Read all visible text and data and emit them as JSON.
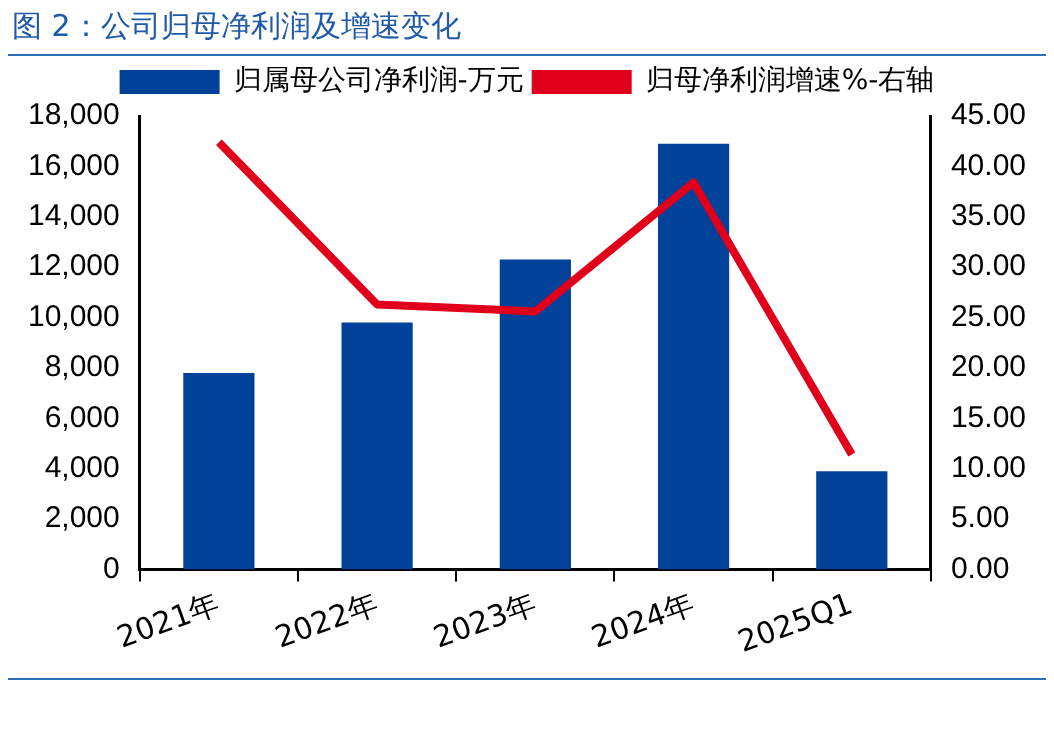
{
  "chart_data": {
    "type": "bar",
    "title": "图 2：公司归母净利润及增速变化",
    "categories": [
      "2021年",
      "2022年",
      "2023年",
      "2024年",
      "2025Q1"
    ],
    "series": [
      {
        "name": "归属母公司净利润-万元",
        "color": "#00429a",
        "values": [
          7800,
          9800,
          12300,
          16900,
          3900
        ]
      },
      {
        "name": "归母净利润增速%-右轴",
        "type": "line",
        "axis": "y2",
        "color": "#e0001b",
        "values": [
          42.4,
          26.3,
          25.6,
          38.4,
          11.4
        ]
      }
    ],
    "ylim": [
      0,
      18000
    ],
    "yticks": [
      {
        "value": 0,
        "label": "0"
      },
      {
        "value": 2000,
        "label": "2,000"
      },
      {
        "value": 4000,
        "label": "4,000"
      },
      {
        "value": 6000,
        "label": "6,000"
      },
      {
        "value": 8000,
        "label": "8,000"
      },
      {
        "value": 10000,
        "label": "10,000"
      },
      {
        "value": 12000,
        "label": "12,000"
      },
      {
        "value": 14000,
        "label": "14,000"
      },
      {
        "value": 16000,
        "label": "16,000"
      },
      {
        "value": 18000,
        "label": "18,000"
      }
    ],
    "y2lim": [
      0,
      45
    ],
    "y2ticks": [
      {
        "value": 0,
        "label": "0.00"
      },
      {
        "value": 5,
        "label": "5.00"
      },
      {
        "value": 10,
        "label": "10.00"
      },
      {
        "value": 15,
        "label": "15.00"
      },
      {
        "value": 20,
        "label": "20.00"
      },
      {
        "value": 25,
        "label": "25.00"
      },
      {
        "value": 30,
        "label": "30.00"
      },
      {
        "value": 35,
        "label": "35.00"
      },
      {
        "value": 40,
        "label": "40.00"
      },
      {
        "value": 45,
        "label": "45.00"
      }
    ],
    "grid": false,
    "legend": "top",
    "marker": "none"
  }
}
